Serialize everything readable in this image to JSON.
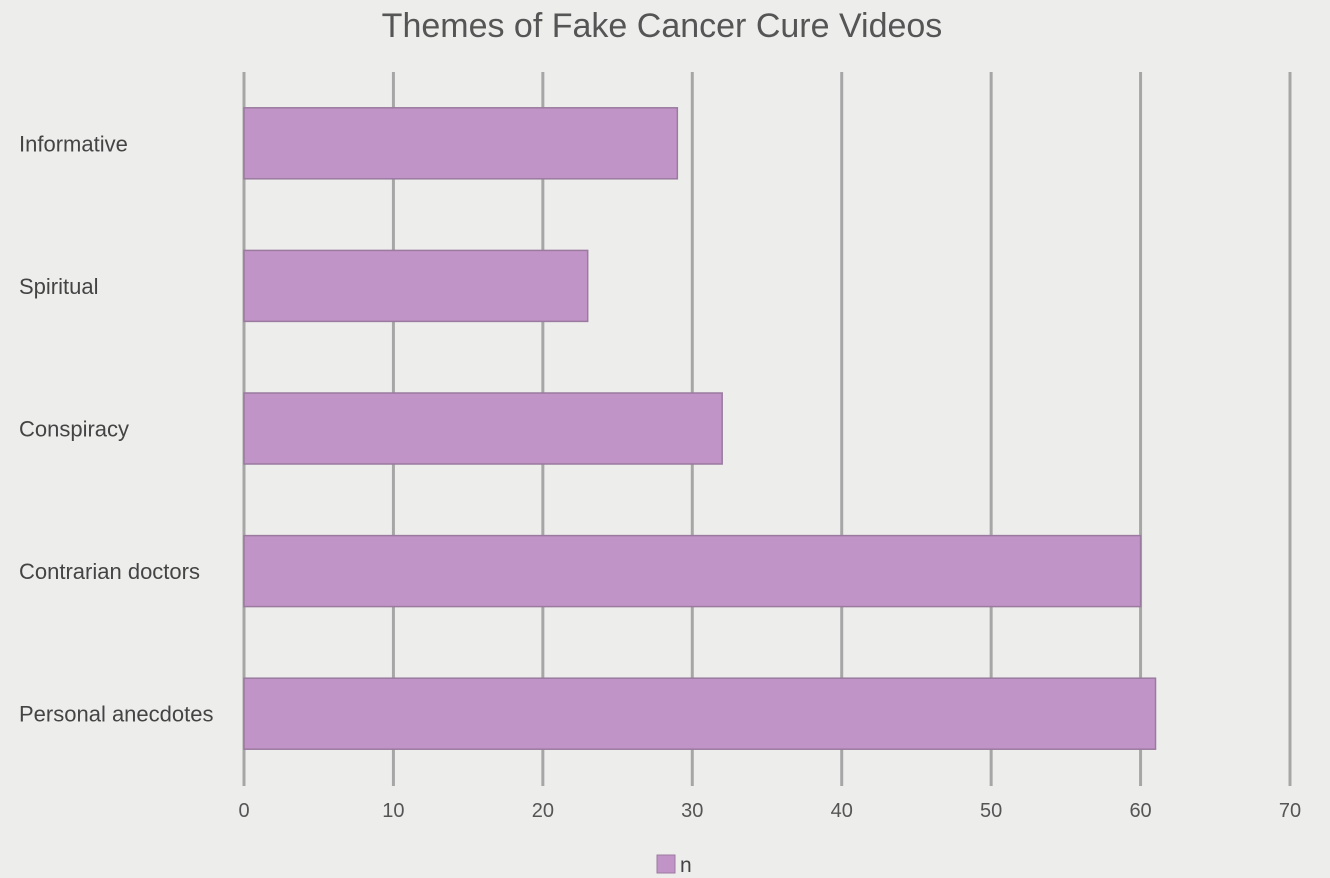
{
  "chart_data": {
    "type": "bar",
    "orientation": "horizontal",
    "title": "Themes of Fake Cancer Cure Videos",
    "xlabel": "",
    "ylabel": "",
    "categories": [
      "Informative",
      "Spiritual",
      "Conspiracy",
      "Contrarian doctors",
      "Personal anecdotes"
    ],
    "series": [
      {
        "name": "n",
        "values": [
          29,
          23,
          32,
          60,
          61
        ]
      }
    ],
    "xlim": [
      0,
      70
    ],
    "xticks": [
      0,
      10,
      20,
      30,
      40,
      50,
      60,
      70
    ],
    "grid": true,
    "legend": "bottom",
    "colors": {
      "bar_fill": "#c194c7",
      "bar_stroke": "#9a7a9e",
      "grid": "#a6a6a6",
      "background": "#edeeec"
    }
  }
}
